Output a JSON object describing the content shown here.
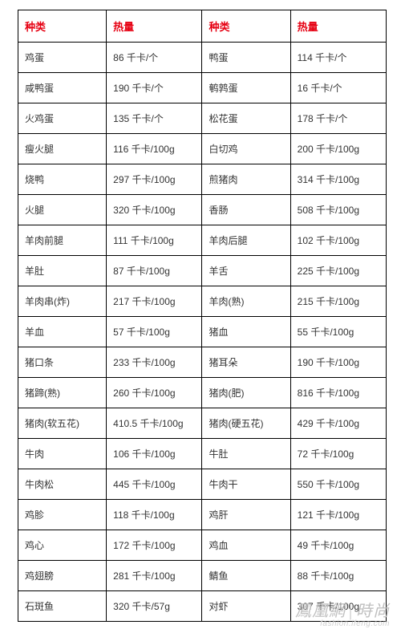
{
  "table": {
    "header_color": "#e60012",
    "border_color": "#000000",
    "text_color": "#333333",
    "font_size_header": 13,
    "font_size_cell": 12,
    "columns": [
      "种类",
      "热量",
      "种类",
      "热量"
    ],
    "rows": [
      [
        "鸡蛋",
        "86 千卡/个",
        "鸭蛋",
        "114 千卡/个"
      ],
      [
        "咸鸭蛋",
        "190 千卡/个",
        "鹌鹑蛋",
        "16 千卡/个"
      ],
      [
        "火鸡蛋",
        "135 千卡/个",
        "松花蛋",
        "178 千卡/个"
      ],
      [
        "瘦火腿",
        "116 千卡/100g",
        "白切鸡",
        "200 千卡/100g"
      ],
      [
        "烧鸭",
        "297 千卡/100g",
        "煎猪肉",
        "314 千卡/100g"
      ],
      [
        "火腿",
        "320 千卡/100g",
        "香肠",
        "508 千卡/100g"
      ],
      [
        "羊肉前腿",
        "111 千卡/100g",
        "羊肉后腿",
        "102 千卡/100g"
      ],
      [
        "羊肚",
        "87 千卡/100g",
        "羊舌",
        "225 千卡/100g"
      ],
      [
        "羊肉串(炸)",
        "217 千卡/100g",
        "羊肉(熟)",
        "215 千卡/100g"
      ],
      [
        "羊血",
        "57 千卡/100g",
        "猪血",
        "55 千卡/100g"
      ],
      [
        "猪口条",
        "233 千卡/100g",
        "猪耳朵",
        "190 千卡/100g"
      ],
      [
        "猪蹄(熟)",
        "260 千卡/100g",
        "猪肉(肥)",
        "816 千卡/100g"
      ],
      [
        "猪肉(软五花)",
        "410.5 千卡/100g",
        "猪肉(硬五花)",
        "429 千卡/100g"
      ],
      [
        "牛肉",
        "106 千卡/100g",
        "牛肚",
        "72 千卡/100g"
      ],
      [
        "牛肉松",
        "445 千卡/100g",
        "牛肉干",
        "550 千卡/100g"
      ],
      [
        "鸡胗",
        "118 千卡/100g",
        "鸡肝",
        "121 千卡/100g"
      ],
      [
        "鸡心",
        "172 千卡/100g",
        "鸡血",
        "49 千卡/100g"
      ],
      [
        "鸡翅膀",
        "281 千卡/100g",
        "鲭鱼",
        "88 千卡/100g"
      ],
      [
        "石斑鱼",
        "320 千卡/57g",
        "对虾",
        "307 千卡/100g"
      ]
    ]
  },
  "watermark": {
    "brand_left": "鳳凰網",
    "brand_right": "時尚",
    "url": "fashion.ifeng.com",
    "color": "#bfbfbf"
  }
}
